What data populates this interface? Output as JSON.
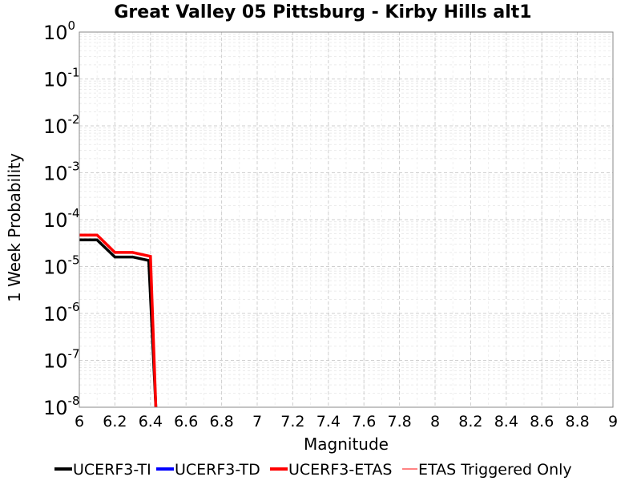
{
  "chart_data": {
    "type": "line",
    "title": "Great Valley 05 Pittsburg - Kirby Hills alt1",
    "xlabel": "Magnitude",
    "ylabel": "1 Week Probability",
    "xlim": [
      6,
      9
    ],
    "ylim_log10": [
      -8,
      0
    ],
    "y_scale": "log",
    "xticks": [
      "6",
      "6.2",
      "6.4",
      "6.6",
      "6.8",
      "7",
      "7.2",
      "7.4",
      "7.6",
      "7.8",
      "8",
      "8.2",
      "8.4",
      "8.6",
      "8.8",
      "9"
    ],
    "yticks": [
      {
        "base": "10",
        "exp": "0",
        "value": 1
      },
      {
        "base": "10",
        "exp": "-1",
        "value": 0.1
      },
      {
        "base": "10",
        "exp": "-2",
        "value": 0.01
      },
      {
        "base": "10",
        "exp": "-3",
        "value": 0.001
      },
      {
        "base": "10",
        "exp": "-4",
        "value": 0.0001
      },
      {
        "base": "10",
        "exp": "-5",
        "value": 1e-05
      },
      {
        "base": "10",
        "exp": "-6",
        "value": 1e-06
      },
      {
        "base": "10",
        "exp": "-7",
        "value": 1e-07
      },
      {
        "base": "10",
        "exp": "-8",
        "value": 1e-08
      }
    ],
    "grid": true,
    "legend_position": "bottom",
    "series": [
      {
        "name": "UCERF3-TI",
        "color": "#000000",
        "x": [
          6.0,
          6.1,
          6.2,
          6.3,
          6.39,
          6.43
        ],
        "y": [
          3.7e-05,
          3.7e-05,
          1.6e-05,
          1.6e-05,
          1.35e-05,
          1e-08
        ]
      },
      {
        "name": "UCERF3-TD",
        "color": "#0000ff",
        "x": [],
        "y": []
      },
      {
        "name": "UCERF3-ETAS",
        "color": "#ff0000",
        "x": [
          6.0,
          6.1,
          6.2,
          6.3,
          6.4,
          6.43
        ],
        "y": [
          4.7e-05,
          4.7e-05,
          2e-05,
          2e-05,
          1.65e-05,
          1e-08
        ]
      },
      {
        "name": "ETAS Triggered Only",
        "color": "#ff5a5a",
        "x": [],
        "y": []
      }
    ]
  }
}
